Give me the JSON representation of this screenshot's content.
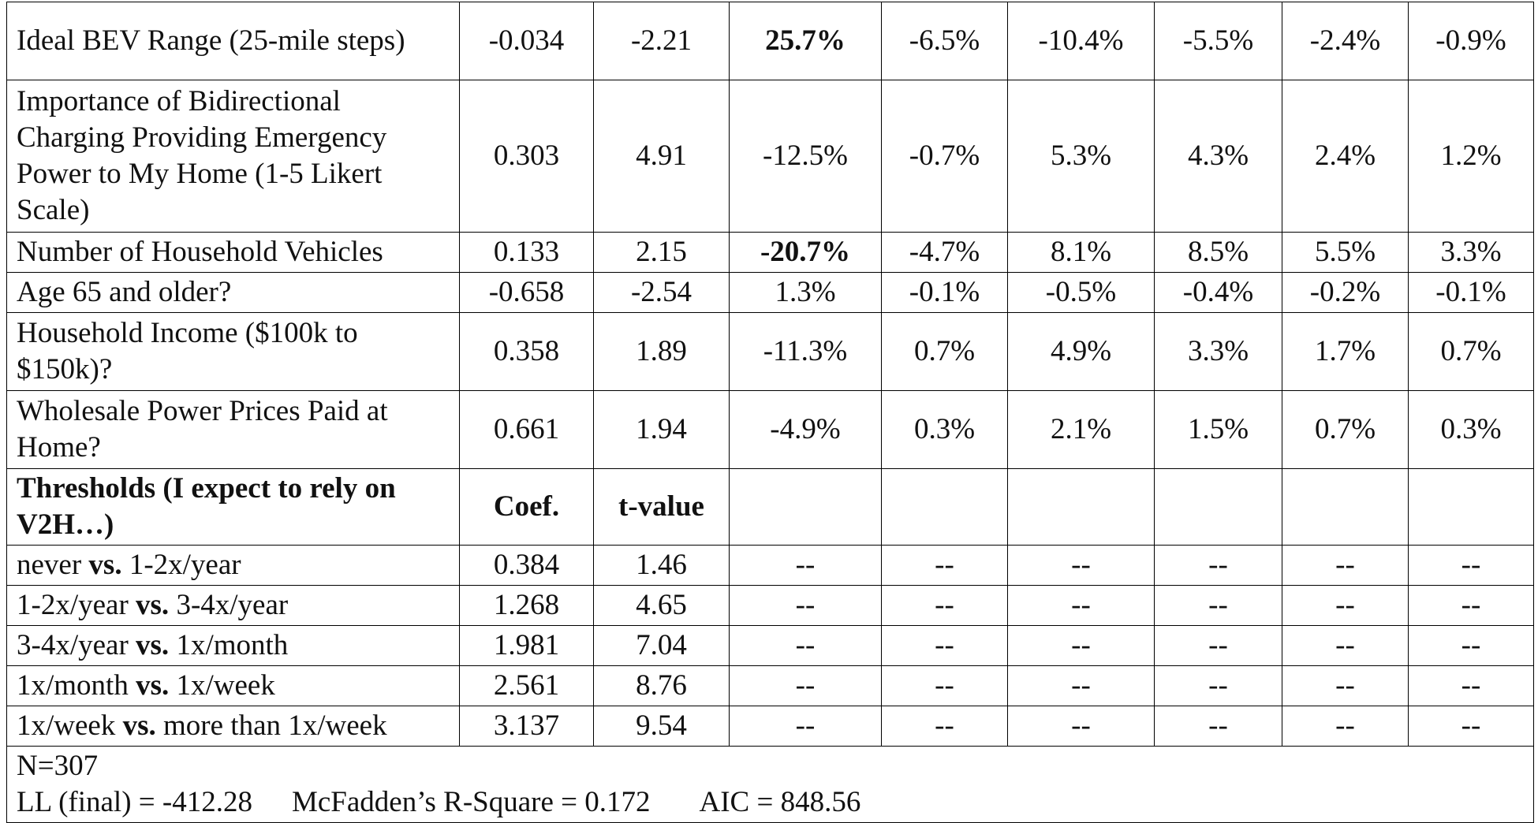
{
  "rows": [
    {
      "label": "Ideal BEV Range (25-mile steps)",
      "coef": "-0.034",
      "t": "-2.21",
      "c1": "25.7%",
      "c2": "-6.5%",
      "c3": "-10.4%",
      "c4": "-5.5%",
      "c5": "-2.4%",
      "c6": "-0.9%"
    },
    {
      "label": "Importance of Bidirectional Charging Providing Emergency Power to My Home (1-5 Likert Scale)",
      "coef": "0.303",
      "t": "4.91",
      "c1": "-12.5%",
      "c2": "-0.7%",
      "c3": "5.3%",
      "c4": "4.3%",
      "c5": "2.4%",
      "c6": "1.2%"
    },
    {
      "label": "Number of Household Vehicles",
      "coef": "0.133",
      "t": "2.15",
      "c1": "-20.7%",
      "c2": "-4.7%",
      "c3": "8.1%",
      "c4": "8.5%",
      "c5": "5.5%",
      "c6": "3.3%"
    },
    {
      "label": "Age 65 and older?",
      "coef": "-0.658",
      "t": "-2.54",
      "c1": "1.3%",
      "c2": "-0.1%",
      "c3": "-0.5%",
      "c4": "-0.4%",
      "c5": "-0.2%",
      "c6": "-0.1%"
    },
    {
      "label": "Household Income ($100k to $150k)?",
      "coef": "0.358",
      "t": "1.89",
      "c1": "-11.3%",
      "c2": "0.7%",
      "c3": "4.9%",
      "c4": "3.3%",
      "c5": "1.7%",
      "c6": "0.7%"
    },
    {
      "label": "Wholesale Power Prices Paid at Home?",
      "coef": "0.661",
      "t": "1.94",
      "c1": "-4.9%",
      "c2": "0.3%",
      "c3": "2.1%",
      "c4": "1.5%",
      "c5": "0.7%",
      "c6": "0.3%"
    }
  ],
  "thresholds_header": {
    "label": "Thresholds (I expect to rely on V2H…)",
    "coef": "Coef.",
    "t": "t-value"
  },
  "vs_word": "vs.",
  "dash": "--",
  "thresholds": [
    {
      "left": "never",
      "right": "1-2x/year",
      "coef": "0.384",
      "t": "1.46"
    },
    {
      "left": "1-2x/year",
      "right": "3-4x/year",
      "coef": "1.268",
      "t": "4.65"
    },
    {
      "left": "3-4x/year",
      "right": "1x/month",
      "coef": "1.981",
      "t": "7.04"
    },
    {
      "left": "1x/month",
      "right": "1x/week",
      "coef": "2.561",
      "t": "8.76"
    },
    {
      "left": "1x/week",
      "right": "more than 1x/week",
      "coef": "3.137",
      "t": "9.54"
    }
  ],
  "footer": {
    "n": "N=307",
    "ll": "LL (final) = -412.28",
    "r2": "McFadden’s R-Square = 0.172",
    "aic": "AIC = 848.56"
  }
}
